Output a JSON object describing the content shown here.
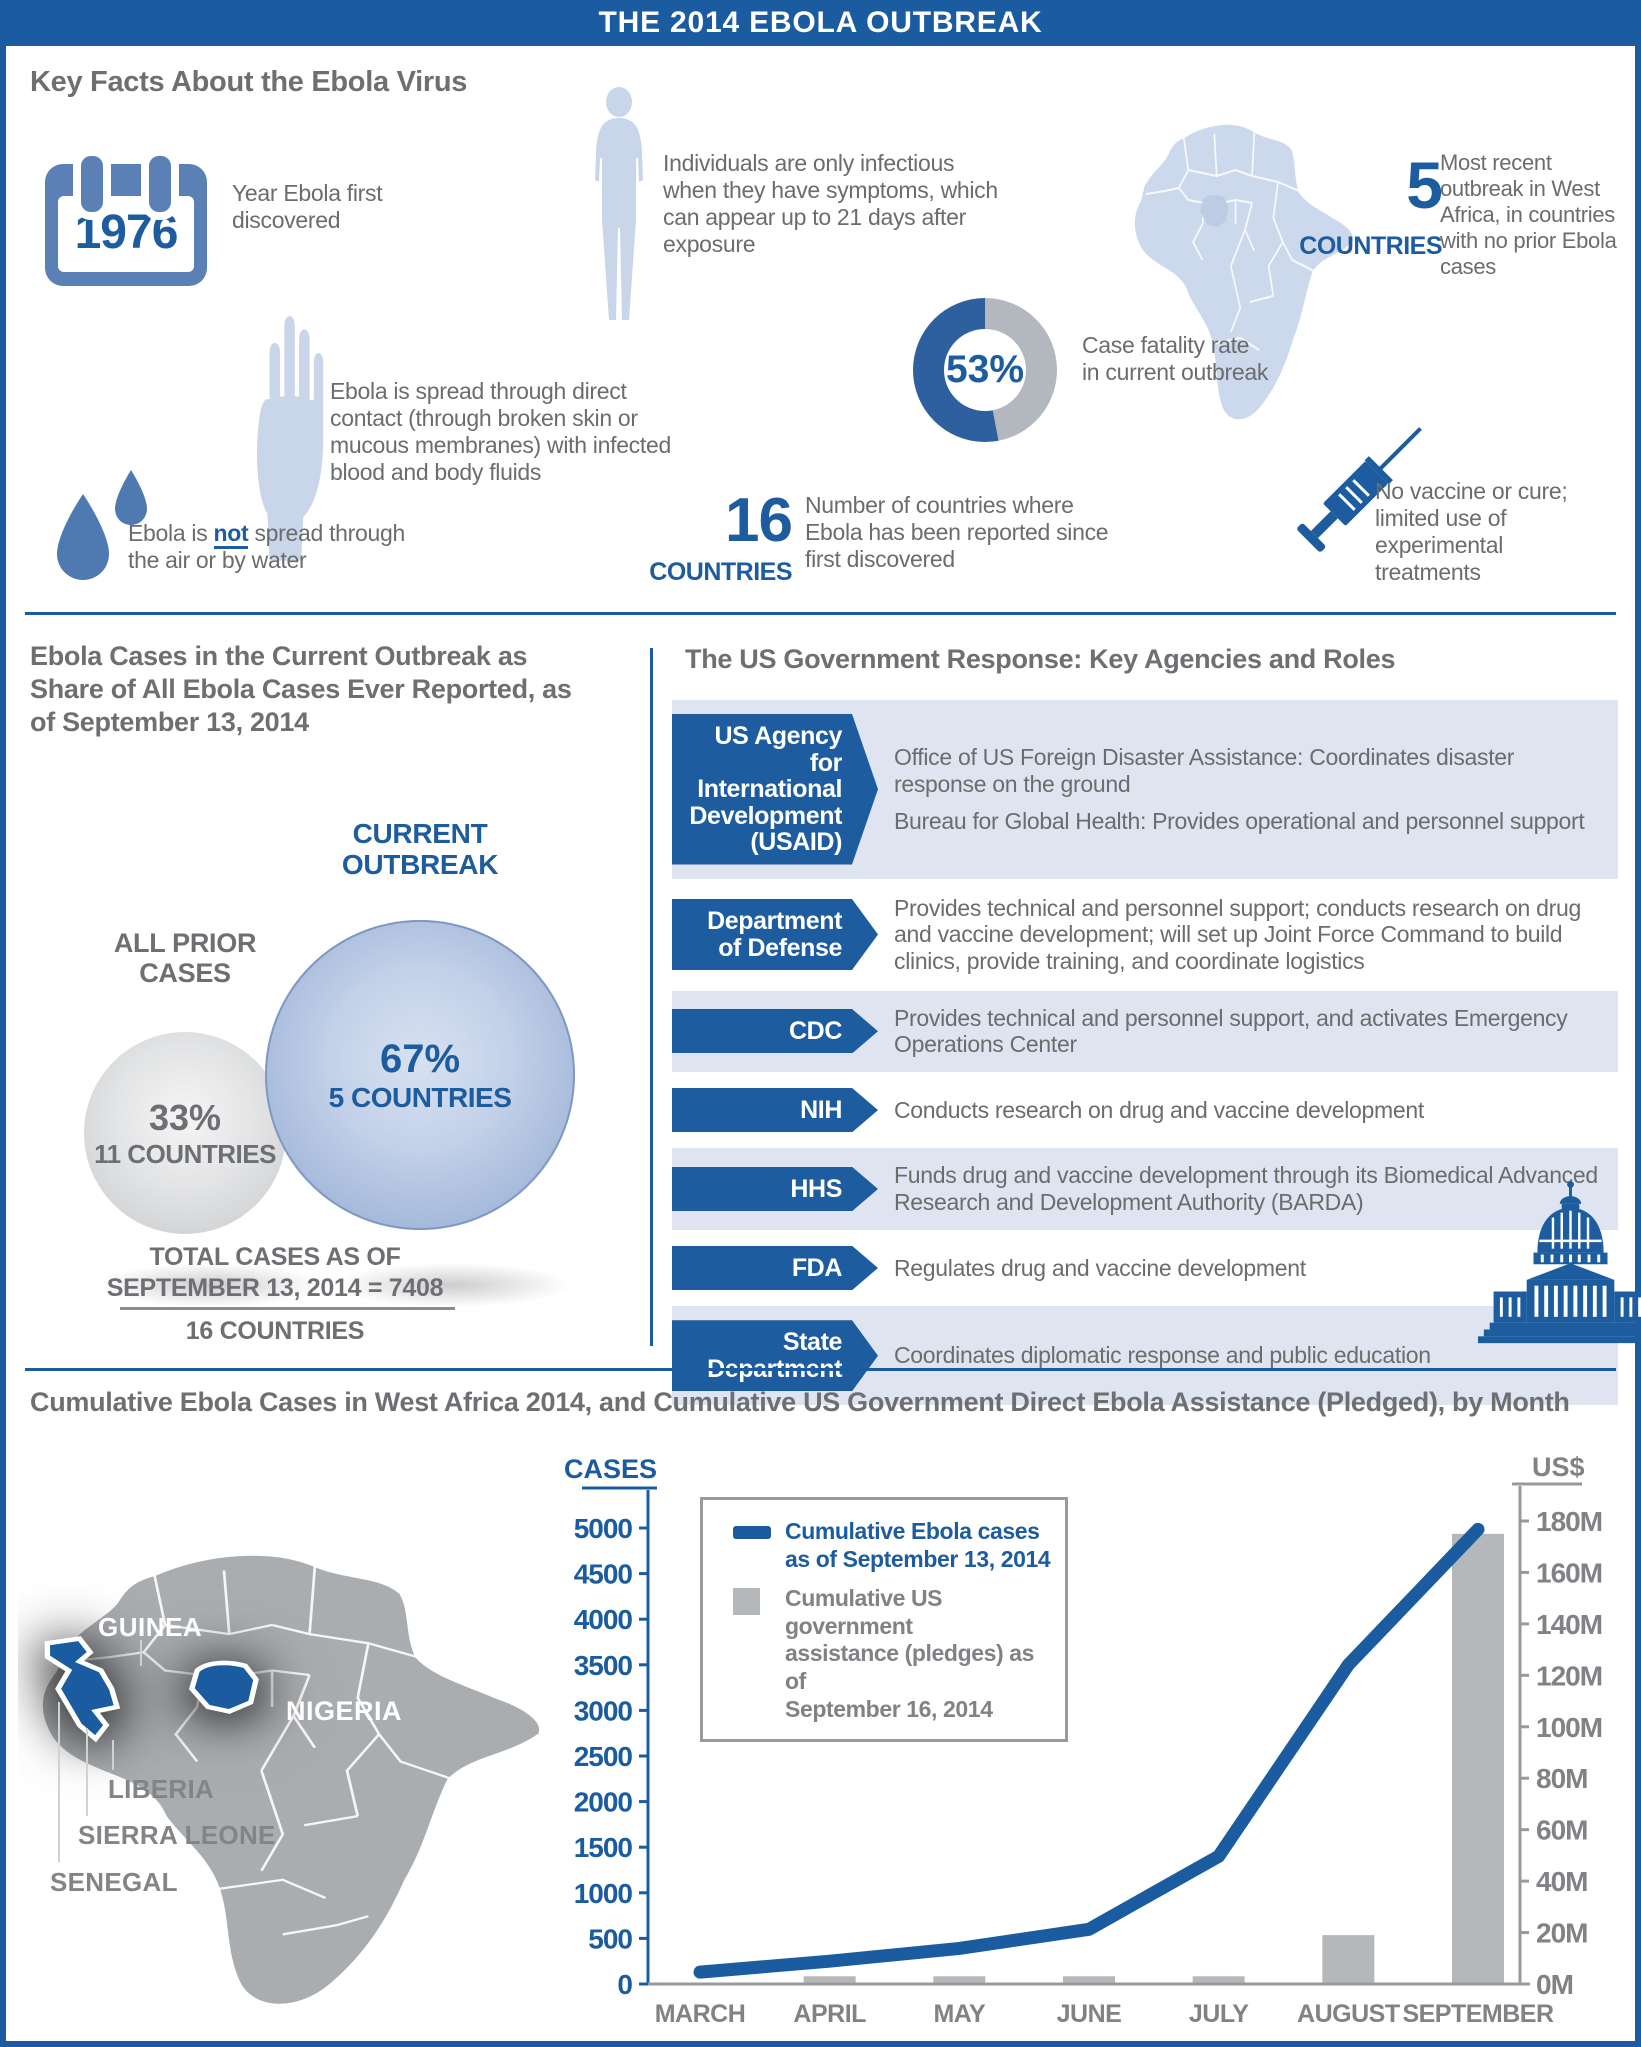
{
  "colors": {
    "brand_blue": "#1a5c9f",
    "accent_blue": "#1d5c9e",
    "mid_blue": "#5b80b6",
    "icon_light_blue": "#c9d6e9",
    "band_light_blue": "#dee4f0",
    "text_gray": "#6a6c6e",
    "heading_gray": "#6d6f72",
    "bar_gray": "#b5b8bb",
    "axis_gray": "#97999b",
    "map_gray": "#aaadb0",
    "donut_gray": "#b2b8be",
    "drop_blue": "#4e7ab1"
  },
  "header": {
    "title": "THE 2014 EBOLA OUTBREAK"
  },
  "key_facts": {
    "heading": "Key Facts About the Ebola Virus",
    "calendar": {
      "year": "1976",
      "text": "Year Ebola first discovered"
    },
    "infectious": {
      "text": "Individuals are only infectious when they have symptoms, which can appear up to 21 days after exposure"
    },
    "recent_outbreak": {
      "number": "5",
      "unit": "COUNTRIES",
      "text": "Most recent outbreak in West Africa, in countries with no prior Ebola cases"
    },
    "spread": {
      "text": "Ebola is spread through direct contact (through broken skin or mucous membranes) with infected blood and body fluids"
    },
    "fatality": {
      "percent": "53%",
      "text": "Case fatality rate in current outbreak"
    },
    "not_spread": {
      "prefix": "Ebola is ",
      "emphasis": "not",
      "suffix": " spread through the air or by water"
    },
    "reported": {
      "number": "16",
      "unit": "COUNTRIES",
      "text": "Number of countries where Ebola has been reported since first discovered"
    },
    "vaccine": {
      "text": "No vaccine or cure; limited use of experimental treatments"
    }
  },
  "outbreak_share": {
    "title": "Ebola Cases in the Current Outbreak as Share of All Ebola Cases Ever Reported, as of September 13, 2014",
    "current_label": "CURRENT OUTBREAK",
    "prior_label": "ALL PRIOR CASES",
    "current": {
      "percent": "67%",
      "countries": "5 COUNTRIES"
    },
    "prior": {
      "percent": "33%",
      "countries": "11 COUNTRIES"
    },
    "total_line1": "TOTAL CASES AS OF",
    "total_line2": "SEPTEMBER 13, 2014 = 7408",
    "total_countries": "16 COUNTRIES"
  },
  "gov_response": {
    "title": "The US Government Response: Key Agencies and Roles",
    "agencies": [
      {
        "name": "US Agency for International Development (USAID)",
        "descs": [
          "Office of US Foreign Disaster Assistance: Coordinates disaster response on the ground",
          "Bureau for Global Health: Provides operational and personnel support"
        ],
        "banded": true
      },
      {
        "name": "Department of Defense",
        "descs": [
          "Provides technical and personnel support; conducts research on drug and vaccine development; will set up Joint Force Command to build clinics, provide training, and coordinate logistics"
        ],
        "banded": false
      },
      {
        "name": "CDC",
        "descs": [
          "Provides technical and personnel support, and activates Emergency Operations Center"
        ],
        "banded": true
      },
      {
        "name": "NIH",
        "descs": [
          "Conducts research on drug and vaccine development"
        ],
        "banded": false
      },
      {
        "name": "HHS",
        "descs": [
          "Funds drug and vaccine development through its Biomedical Advanced Research and Development Authority (BARDA)"
        ],
        "banded": true
      },
      {
        "name": "FDA",
        "descs": [
          "Regulates drug and vaccine development"
        ],
        "banded": false
      },
      {
        "name": "State Department",
        "descs": [
          "Coordinates diplomatic response and public education"
        ],
        "banded": true
      }
    ]
  },
  "bottom": {
    "title": "Cumulative Ebola Cases in West Africa 2014, and Cumulative US Government Direct Ebola Assistance (Pledged), by Month",
    "map_labels": {
      "guinea": "GUINEA",
      "nigeria": "NIGERIA",
      "liberia": "LIBERIA",
      "sierra_leone": "SIERRA LEONE",
      "senegal": "SENEGAL"
    },
    "legend": {
      "cases": "Cumulative Ebola cases\nas of September 13, 2014",
      "assistance": "Cumulative US government\nassistance (pledges) as of\nSeptember 16, 2014"
    }
  },
  "chart_data": [
    {
      "type": "pie",
      "variant": "donut",
      "title": "Case fatality rate in current outbreak",
      "center_label": "53%",
      "slices": [
        {
          "label": "case fatality",
          "value": 53,
          "color": "#2e5f9f"
        },
        {
          "label": "survival",
          "value": 47,
          "color": "#b2b8be"
        }
      ]
    },
    {
      "type": "bubble",
      "title": "Ebola Cases in the Current Outbreak as Share of All Ebola Cases Ever Reported, as of September 13, 2014",
      "points": [
        {
          "label": "ALL PRIOR CASES",
          "percent": 33,
          "countries": 11,
          "color": "#c7c9cb"
        },
        {
          "label": "CURRENT OUTBREAK",
          "percent": 67,
          "countries": 5,
          "color": "#8ea7d0"
        }
      ],
      "total": "TOTAL CASES AS OF SEPTEMBER 13, 2014 = 7408",
      "total_countries": 16
    },
    {
      "type": "line+bar",
      "title": "Cumulative Ebola Cases in West Africa 2014, and Cumulative US Government Direct Ebola Assistance (Pledged), by Month",
      "categories": [
        "MARCH",
        "APRIL",
        "MAY",
        "JUNE",
        "JULY",
        "AUGUST",
        "SEPTEMBER"
      ],
      "series": [
        {
          "name": "Cumulative Ebola cases as of September 13, 2014",
          "type": "line",
          "axis": "left",
          "color": "#1a5c9f",
          "values": [
            130,
            250,
            390,
            600,
            1400,
            3500,
            4985
          ]
        },
        {
          "name": "Cumulative US government assistance (pledges) as of September 16, 2014",
          "type": "bar",
          "axis": "right",
          "color": "#b5b8bb",
          "values_million_usd": [
            0,
            3,
            3,
            3,
            3,
            19,
            175
          ]
        }
      ],
      "left_axis": {
        "label": "CASES",
        "min": 0,
        "max": 5000,
        "step": 500
      },
      "right_axis": {
        "label": "US$",
        "min": 0,
        "max": 180,
        "step": 20,
        "tick_suffix": "M"
      },
      "legend_position": "top-left",
      "grid": false
    }
  ]
}
